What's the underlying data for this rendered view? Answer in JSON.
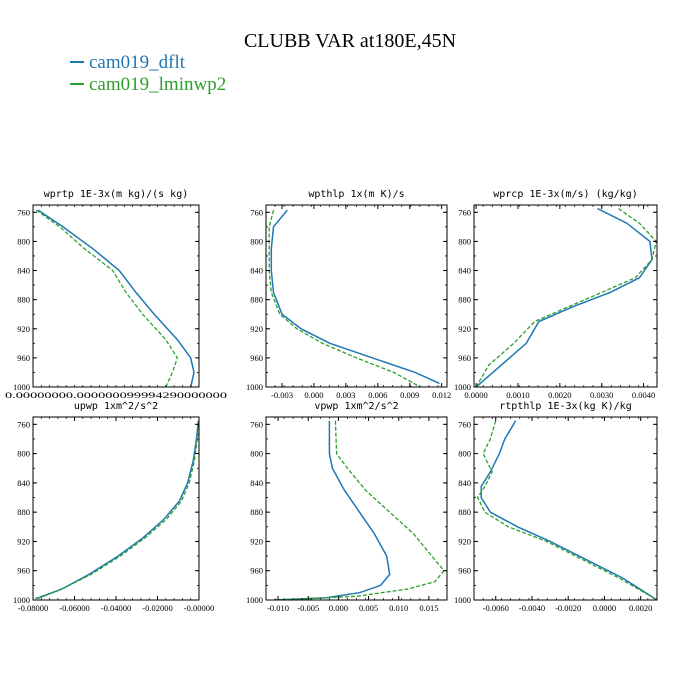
{
  "title": "CLUBB VAR at180E,45N",
  "legend": [
    {
      "label": "cam019_dflt",
      "color": "#1f77b4",
      "dash": false
    },
    {
      "label": "cam019_lminwp2",
      "color": "#2ca02c",
      "dash": true
    }
  ],
  "chart_data": [
    {
      "type": "line",
      "title": "wprtp  1E-3x(m kg)/(s kg)",
      "xlim": [
        0.0,
        1e-07
      ],
      "ylim": [
        1000,
        750
      ],
      "yticks": [
        "760",
        "800",
        "840",
        "880",
        "920",
        "960",
        "1000"
      ],
      "xticks": [],
      "x_overlapping_text": "0.00000000.000000099994290000000",
      "series": [
        {
          "name": "cam019_dflt",
          "x": [
            3e-09,
            1.8e-08,
            3.6e-08,
            5.2e-08,
            6.2e-08,
            7.3e-08,
            8.7e-08,
            9.5e-08,
            9.7e-08,
            9.5e-08
          ],
          "y": [
            757,
            780,
            810,
            840,
            870,
            900,
            935,
            960,
            980,
            1000
          ]
        },
        {
          "name": "cam019_lminwp2",
          "x": [
            2e-09,
            1.6e-08,
            3.1e-08,
            4.8e-08,
            5.6e-08,
            6.6e-08,
            8e-08,
            8.7e-08,
            8.4e-08,
            8e-08
          ],
          "y": [
            757,
            780,
            810,
            840,
            870,
            900,
            935,
            960,
            980,
            1000
          ]
        }
      ]
    },
    {
      "type": "line",
      "title": "wpthlp  1x(m K)/s",
      "xlim": [
        -0.0045,
        0.0125
      ],
      "ylim": [
        1000,
        750
      ],
      "yticks": [
        "760",
        "800",
        "840",
        "880",
        "920",
        "960",
        "1000"
      ],
      "xticks": [
        "-0.003",
        "0.000",
        "0.003",
        "0.006",
        "0.009",
        "0.012"
      ],
      "series": [
        {
          "name": "cam019_dflt",
          "x": [
            -0.0025,
            -0.0038,
            -0.004,
            -0.004,
            -0.0038,
            -0.003,
            -0.0012,
            0.0015,
            0.0055,
            0.0095,
            0.0118
          ],
          "y": [
            757,
            780,
            810,
            840,
            870,
            900,
            920,
            940,
            960,
            980,
            995
          ]
        },
        {
          "name": "cam019_lminwp2",
          "x": [
            -0.0038,
            -0.0042,
            -0.0042,
            -0.0042,
            -0.004,
            -0.0032,
            -0.0016,
            0.0008,
            0.004,
            0.0075,
            0.01
          ],
          "y": [
            757,
            780,
            810,
            840,
            870,
            900,
            920,
            940,
            960,
            980,
            1000
          ]
        }
      ]
    },
    {
      "type": "line",
      "title": "wprcp  1E-3x(m/s) (kg/kg)",
      "xlim": [
        -5e-05,
        0.00432
      ],
      "ylim": [
        1000,
        750
      ],
      "yticks": [
        "760",
        "800",
        "840",
        "880",
        "920",
        "960",
        "1000"
      ],
      "xticks": [
        "0.0000",
        "0.0010",
        "0.0020",
        "0.0030",
        "0.0040"
      ],
      "series": [
        {
          "name": "cam019_dflt",
          "x": [
            0.0029,
            0.0036,
            0.00415,
            0.0042,
            0.0039,
            0.0032,
            0.0023,
            0.0015,
            0.0012,
            0.0006,
            0.0
          ],
          "y": [
            755,
            775,
            800,
            825,
            850,
            870,
            890,
            910,
            940,
            970,
            1000
          ]
        },
        {
          "name": "cam019_lminwp2",
          "x": [
            0.0034,
            0.0039,
            0.0043,
            0.0042,
            0.0038,
            0.003,
            0.0022,
            0.0014,
            0.0009,
            0.0003,
            0.0
          ],
          "y": [
            755,
            775,
            800,
            825,
            850,
            870,
            890,
            910,
            940,
            970,
            1000
          ]
        }
      ]
    },
    {
      "type": "line",
      "title": "upwp  1xm^2/s^2",
      "xlim": [
        -0.08,
        0.0
      ],
      "ylim": [
        1000,
        750
      ],
      "yticks": [
        "760",
        "800",
        "840",
        "880",
        "920",
        "960",
        "1000"
      ],
      "xticks": [
        "-0.08000",
        "-0.06000",
        "-0.04000",
        "-0.02000",
        "-0.00000"
      ],
      "series": [
        {
          "name": "cam019_dflt",
          "x": [
            -0.0003,
            -0.0012,
            -0.0028,
            -0.0055,
            -0.0095,
            -0.017,
            -0.027,
            -0.039,
            -0.053,
            -0.066,
            -0.078
          ],
          "y": [
            755,
            780,
            810,
            840,
            865,
            890,
            915,
            940,
            965,
            985,
            998
          ]
        },
        {
          "name": "cam019_lminwp2",
          "x": [
            0.0,
            -0.0008,
            -0.0022,
            -0.0047,
            -0.0085,
            -0.0158,
            -0.026,
            -0.038,
            -0.052,
            -0.066,
            -0.079
          ],
          "y": [
            755,
            780,
            810,
            840,
            865,
            890,
            915,
            940,
            965,
            985,
            998
          ]
        }
      ]
    },
    {
      "type": "line",
      "title": "vpwp  1xm^2/s^2",
      "xlim": [
        -0.012,
        0.018
      ],
      "ylim": [
        1000,
        750
      ],
      "yticks": [
        "760",
        "800",
        "840",
        "880",
        "920",
        "960",
        "1000"
      ],
      "xticks": [
        "-0.010",
        "-0.005",
        "0.000",
        "0.005",
        "0.010",
        "0.015"
      ],
      "series": [
        {
          "name": "cam019_dflt",
          "x": [
            -0.0015,
            -0.0015,
            -0.001,
            0.001,
            0.0035,
            0.006,
            0.008,
            0.0085,
            0.007,
            0.0035,
            -0.002,
            -0.0105
          ],
          "y": [
            755,
            800,
            820,
            850,
            880,
            910,
            940,
            965,
            980,
            990,
            997,
            1000
          ]
        },
        {
          "name": "cam019_lminwp2",
          "x": [
            -0.0005,
            -0.0003,
            0.0015,
            0.0045,
            0.0085,
            0.0125,
            0.0155,
            0.0175,
            0.016,
            0.0115,
            0.003,
            -0.01
          ],
          "y": [
            755,
            800,
            820,
            850,
            880,
            910,
            940,
            960,
            975,
            985,
            995,
            1000
          ]
        }
      ]
    },
    {
      "type": "line",
      "title": "rtpthlp  1E-3x(kg K)/kg",
      "xlim": [
        -0.0072,
        0.0029
      ],
      "ylim": [
        1000,
        750
      ],
      "yticks": [
        "760",
        "800",
        "840",
        "880",
        "920",
        "960",
        "1000"
      ],
      "xticks": [
        "-0.0060",
        "-0.0040",
        "-0.0020",
        "0.0000",
        "0.0020"
      ],
      "series": [
        {
          "name": "cam019_dflt",
          "x": [
            -0.0049,
            -0.0055,
            -0.0058,
            -0.0063,
            -0.0068,
            -0.0068,
            -0.0063,
            -0.0048,
            -0.003,
            -0.001,
            0.001,
            0.0029
          ],
          "y": [
            755,
            780,
            800,
            825,
            845,
            860,
            880,
            900,
            920,
            945,
            970,
            1000
          ]
        },
        {
          "name": "cam019_lminwp2",
          "x": [
            -0.006,
            -0.0063,
            -0.0067,
            -0.0062,
            -0.0066,
            -0.007,
            -0.0066,
            -0.0053,
            -0.0032,
            -0.0012,
            0.0008,
            0.0029
          ],
          "y": [
            755,
            780,
            800,
            825,
            845,
            860,
            880,
            900,
            920,
            945,
            970,
            1000
          ]
        }
      ]
    }
  ]
}
